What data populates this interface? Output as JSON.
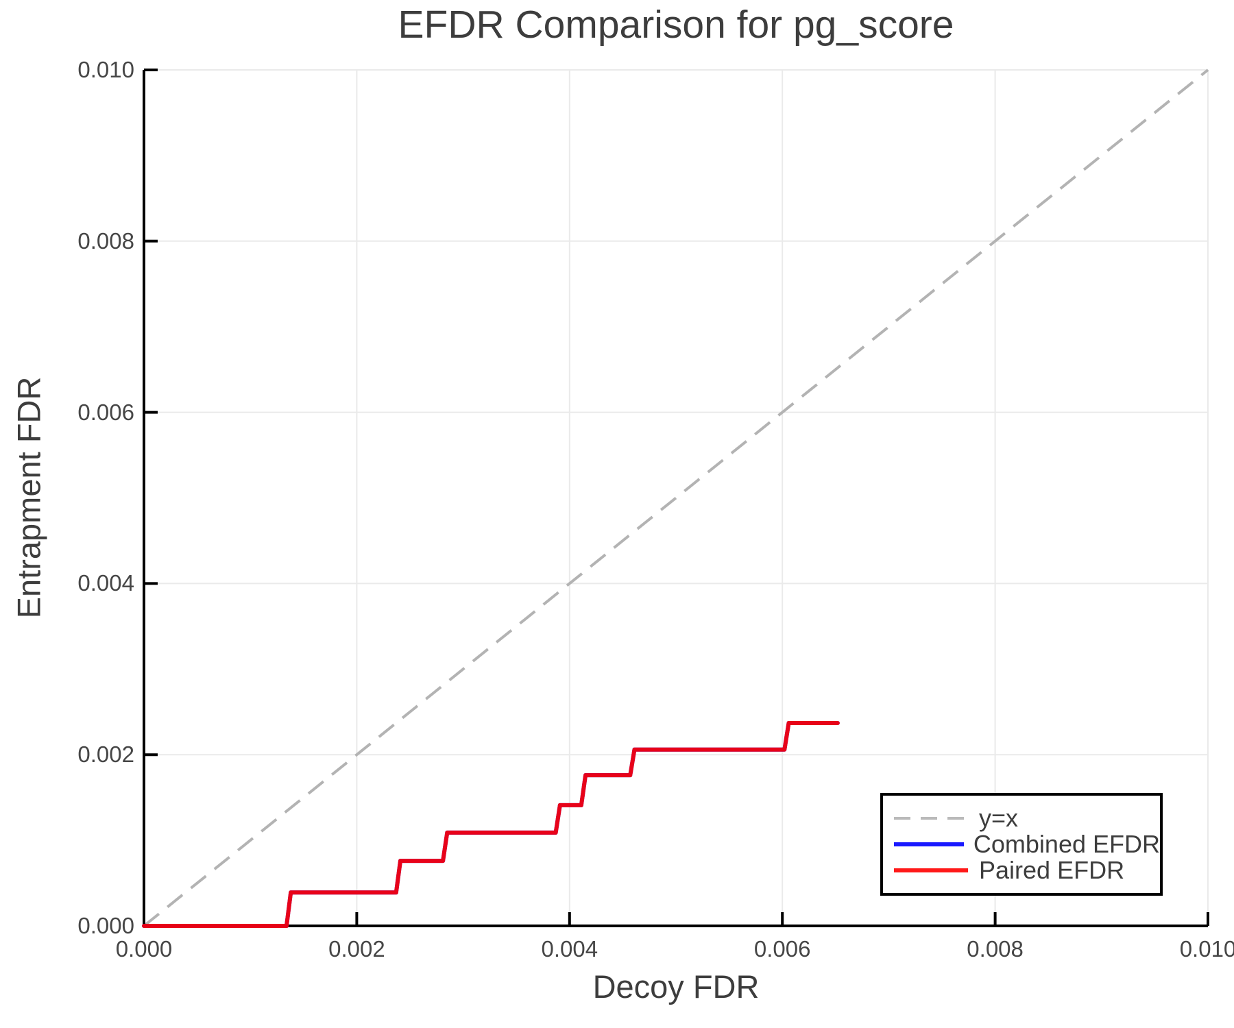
{
  "chart_data": {
    "type": "line",
    "title": "EFDR Comparison for pg_score",
    "xlabel": "Decoy FDR",
    "ylabel": "Entrapment FDR",
    "xlim": [
      0.0,
      0.01
    ],
    "ylim": [
      0.0,
      0.01
    ],
    "xticks": {
      "values": [
        0.0,
        0.002,
        0.004,
        0.006,
        0.008,
        0.01
      ],
      "labels": [
        "0.000",
        "0.002",
        "0.004",
        "0.006",
        "0.008",
        "0.010"
      ]
    },
    "yticks": {
      "values": [
        0.0,
        0.002,
        0.004,
        0.006,
        0.008,
        0.01
      ],
      "labels": [
        "0.000",
        "0.002",
        "0.004",
        "0.006",
        "0.008",
        "0.010"
      ]
    },
    "grid": true,
    "grid_color": "#eaeaea",
    "axis_color": "#000000",
    "text_color": "#3d3d3d",
    "legend_position": "bottom-right",
    "reference_line": {
      "label": "y=x",
      "from": [
        0.0,
        0.0
      ],
      "to": [
        0.01,
        0.01
      ],
      "color": "#b3b3b3",
      "dashed": true
    },
    "series": [
      {
        "name": "Combined EFDR",
        "color": "#0000ff",
        "opacity": 0.9,
        "points": [
          [
            0.0,
            0.0
          ],
          [
            0.00134,
            0.0
          ],
          [
            0.00138,
            0.00039
          ],
          [
            0.00237,
            0.00039
          ],
          [
            0.00241,
            0.00076
          ],
          [
            0.00281,
            0.00076
          ],
          [
            0.00285,
            0.00109
          ],
          [
            0.00387,
            0.00109
          ],
          [
            0.00391,
            0.00141
          ],
          [
            0.00411,
            0.00141
          ],
          [
            0.00415,
            0.00176
          ],
          [
            0.00457,
            0.00176
          ],
          [
            0.00461,
            0.00206
          ],
          [
            0.00602,
            0.00206
          ],
          [
            0.00606,
            0.00237
          ],
          [
            0.00652,
            0.00237
          ]
        ]
      },
      {
        "name": "Paired EFDR",
        "color": "#ff0000",
        "opacity": 0.9,
        "points": [
          [
            0.0,
            0.0
          ],
          [
            0.00134,
            0.0
          ],
          [
            0.00138,
            0.00039
          ],
          [
            0.00237,
            0.00039
          ],
          [
            0.00241,
            0.00076
          ],
          [
            0.00281,
            0.00076
          ],
          [
            0.00285,
            0.00109
          ],
          [
            0.00387,
            0.00109
          ],
          [
            0.00391,
            0.00141
          ],
          [
            0.00411,
            0.00141
          ],
          [
            0.00415,
            0.00176
          ],
          [
            0.00457,
            0.00176
          ],
          [
            0.00461,
            0.00206
          ],
          [
            0.00602,
            0.00206
          ],
          [
            0.00606,
            0.00237
          ],
          [
            0.00652,
            0.00237
          ]
        ]
      }
    ],
    "legend_entries": [
      {
        "label": "y=x",
        "color": "#b3b3b3",
        "dashed": true
      },
      {
        "label": "Combined EFDR",
        "color": "#0000ff",
        "dashed": false
      },
      {
        "label": "Paired EFDR",
        "color": "#ff0000",
        "dashed": false
      }
    ]
  }
}
